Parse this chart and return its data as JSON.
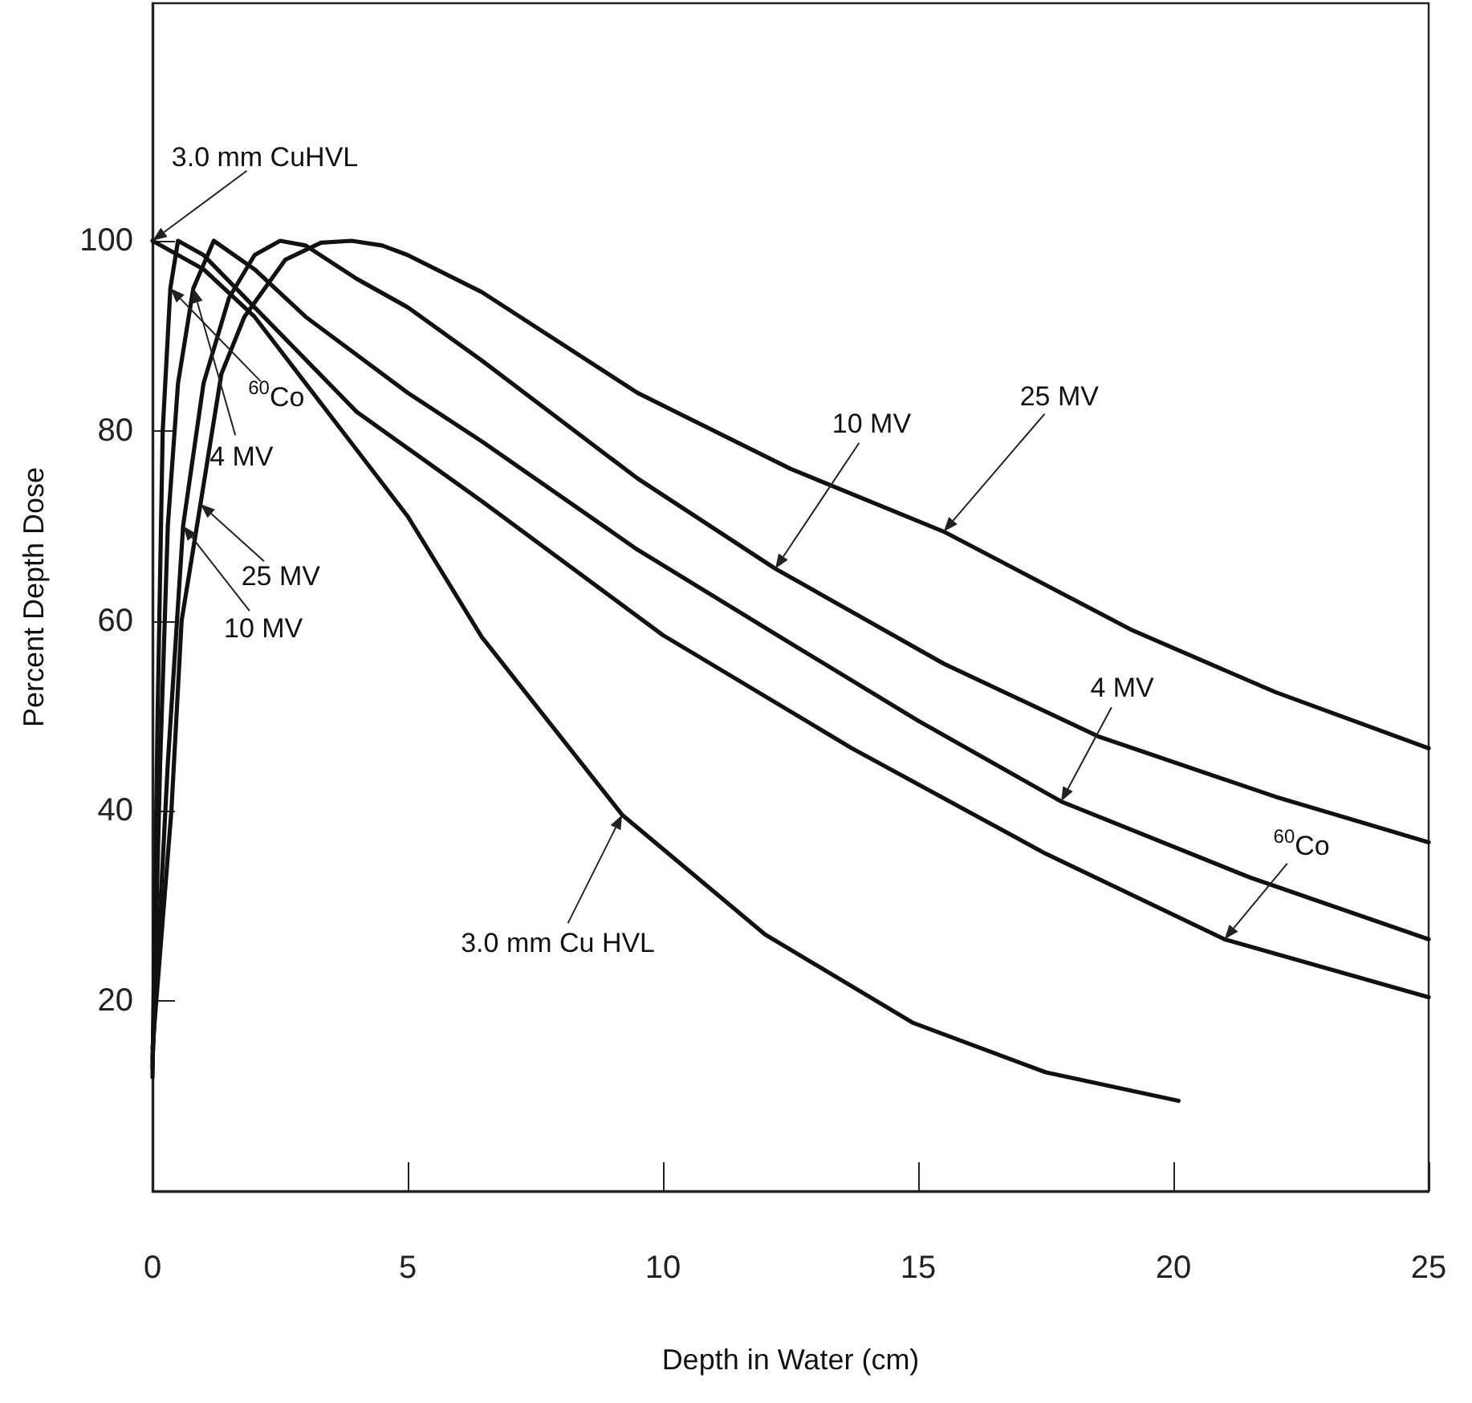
{
  "chart_data": {
    "type": "line",
    "xlabel": "Depth in Water (cm)",
    "ylabel": "Percent Depth Dose",
    "xlim": [
      0,
      25
    ],
    "xticks": [
      0,
      5,
      10,
      15,
      20,
      25
    ],
    "ylim": [
      0,
      125
    ],
    "yticks": [
      20,
      40,
      60,
      80,
      100
    ],
    "grid": false,
    "marker": "none",
    "line_style": "solid",
    "series": [
      {
        "color": "#111111",
        "x": [
          0,
          1,
          2,
          3,
          4,
          5,
          6.45,
          9.2,
          12,
          14.9,
          17.5,
          20.1
        ],
        "values": [
          100,
          97,
          92,
          85,
          78,
          71,
          58.3,
          39.6,
          27,
          17.7,
          12.5,
          9.5
        ]
      },
      {
        "color": "#111111",
        "x": [
          0,
          0.1,
          0.2,
          0.35,
          0.5,
          1,
          2,
          4,
          6.45,
          10,
          13.7,
          17.5,
          21,
          25
        ],
        "values": [
          12,
          50,
          80,
          95,
          100,
          98.5,
          93,
          82,
          72.6,
          58.5,
          46.6,
          35.5,
          26.5,
          20.4
        ]
      },
      {
        "color": "#111111",
        "x": [
          0,
          0.15,
          0.3,
          0.5,
          0.8,
          1.2,
          2,
          3,
          5,
          6.45,
          9.5,
          12.3,
          15,
          17.8,
          21.5,
          25
        ],
        "values": [
          13,
          45,
          70,
          85,
          95,
          100,
          97,
          92,
          84,
          78.9,
          67.5,
          58.3,
          49.5,
          41,
          33,
          26.5
        ]
      },
      {
        "color": "#111111",
        "x": [
          0,
          0.3,
          0.6,
          1,
          1.5,
          2,
          2.5,
          3,
          4,
          5,
          6.45,
          9.5,
          12.2,
          15.5,
          18.55,
          22,
          25
        ],
        "values": [
          14,
          45,
          70,
          85,
          94,
          98.5,
          100,
          99.5,
          96,
          93,
          87.4,
          75,
          65.5,
          55.5,
          47.8,
          41.5,
          36.7
        ]
      },
      {
        "color": "#111111",
        "x": [
          0,
          0.37,
          0.57,
          0.94,
          1.35,
          1.8,
          2.6,
          3.3,
          3.9,
          4.5,
          5,
          6.45,
          9.5,
          12.5,
          15.5,
          19.2,
          22,
          25
        ],
        "values": [
          15,
          40,
          60,
          72.3,
          86,
          92,
          98,
          99.8,
          100,
          99.5,
          98.5,
          94.6,
          84,
          76,
          69.4,
          59,
          52.5,
          46.6
        ]
      }
    ],
    "annotations": [
      {
        "text": "3.0 mm CuHVL",
        "x": 0,
        "y": 100
      },
      {
        "text": "$^{60}$Co",
        "x": 0.35,
        "y": 95
      },
      {
        "text": "4 MV",
        "x": 0.8,
        "y": 95
      },
      {
        "text": "25 MV",
        "x": 0.94,
        "y": 72.3
      },
      {
        "text": "10 MV",
        "x": 0.6,
        "y": 70
      },
      "10 MV",
      "25 MV",
      "4 MV",
      "$^{60}$Co",
      {
        "text": "3.0 mm Cu HVL",
        "x": 9.2,
        "y": 39.6
      }
    ]
  }
}
